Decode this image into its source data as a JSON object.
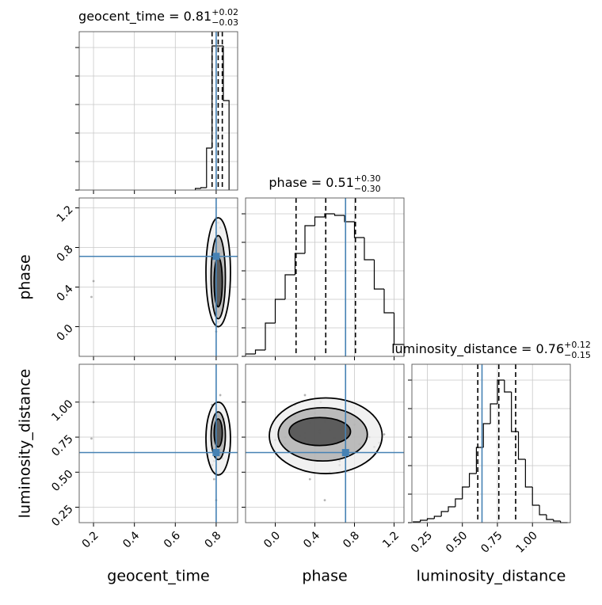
{
  "chart_data": {
    "type": "corner",
    "parameters": [
      {
        "name": "geocent_time",
        "title": "geocent_time = 0.81",
        "title_sup": "+0.02",
        "title_sub": "−0.03",
        "lim": [
          0.13,
          0.905
        ],
        "ticks": [
          0.2,
          0.4,
          0.6,
          0.8
        ],
        "truth": 0.8,
        "quantiles": [
          0.78,
          0.81,
          0.83
        ],
        "bins": [
          0.698,
          0.725,
          0.753,
          0.78,
          0.808,
          0.835,
          0.863
        ],
        "counts": [
          2,
          3,
          53,
          182,
          182,
          113
        ]
      },
      {
        "name": "phase",
        "title": "phase = 0.51",
        "title_sup": "+0.30",
        "title_sub": "−0.30",
        "lim": [
          -0.3,
          1.3
        ],
        "ticks": [
          {
            "value": 0,
            "label": "0.0"
          },
          0.4,
          0.8,
          1.2
        ],
        "truth": 0.71,
        "quantiles": [
          0.21,
          0.51,
          0.81
        ],
        "bins": [
          -0.3,
          -0.2,
          -0.1,
          0.0,
          0.1,
          0.2,
          0.3,
          0.4,
          0.5,
          0.6,
          0.7,
          0.8,
          0.9,
          1.0,
          1.1,
          1.2,
          1.3
        ],
        "counts": [
          3,
          8,
          42,
          72,
          103,
          130,
          165,
          176,
          180,
          178,
          170,
          150,
          122,
          85,
          55,
          15
        ]
      },
      {
        "name": "luminosity_distance",
        "title": "luminosity_distance = 0.76",
        "title_sup": "+0.12",
        "title_sub": "−0.15",
        "lim": [
          0.14,
          1.27
        ],
        "ticks": [
          0.25,
          {
            "value": 0.5,
            "label": "0.50"
          },
          0.75,
          {
            "value": 1,
            "label": "1.00"
          }
        ],
        "truth": 0.64,
        "quantiles": [
          0.61,
          0.76,
          0.88
        ],
        "bins": [
          0.15,
          0.2,
          0.25,
          0.3,
          0.35,
          0.4,
          0.45,
          0.5,
          0.55,
          0.6,
          0.65,
          0.7,
          0.75,
          0.8,
          0.85,
          0.9,
          0.95,
          1.0,
          1.05,
          1.1,
          1.15,
          1.2,
          1.25
        ],
        "counts": [
          1,
          3,
          5,
          8,
          14,
          20,
          30,
          45,
          62,
          95,
          125,
          150,
          180,
          165,
          115,
          80,
          45,
          22,
          10,
          4,
          2,
          0
        ]
      }
    ],
    "hist_ylim": [
      0,
      200
    ],
    "hist_yticks": [
      0,
      36,
      72,
      108,
      144,
      180
    ],
    "grid": true,
    "truth_color": "#4682b4",
    "hist_color": "#000000",
    "sample_color": "#777777",
    "density_colors": [
      "#ececec",
      "#a8a8a8",
      "#3c3c3c"
    ],
    "samples": [
      [
        0.2,
        0.19,
        0.8,
        0.81,
        0.79,
        0.82,
        0.8,
        0.81,
        0.83,
        0.8,
        0.79,
        0.81,
        0.82,
        0.8,
        0.81,
        0.78,
        0.84,
        0.8,
        0.81,
        0.82,
        0.79,
        0.8,
        0.81,
        0.83,
        0.8,
        0.82,
        0.81,
        0.79,
        0.8,
        0.81,
        0.82,
        0.8,
        0.78,
        0.81,
        0.83,
        0.8,
        0.79,
        0.81,
        0.82,
        0.8
      ],
      [
        0.46,
        0.3,
        0.1,
        0.55,
        0.8,
        0.35,
        0.95,
        0.2,
        0.6,
        0.45,
        0.7,
        0.05,
        1.0,
        0.5,
        0.25,
        0.65,
        0.4,
        -0.05,
        0.85,
        0.3,
        0.55,
        1.1,
        0.15,
        0.75,
        0.4,
        0.6,
        0.9,
        0.35,
        0.5,
        0.0,
        0.7,
        0.45,
        0.2,
        1.05,
        0.55,
        0.8,
        0.65,
        0.3,
        0.1,
        0.5
      ],
      [
        1.0,
        0.74,
        0.7,
        0.8,
        0.65,
        0.85,
        0.75,
        0.9,
        0.6,
        0.78,
        0.82,
        0.72,
        0.68,
        0.95,
        0.76,
        0.55,
        0.88,
        0.79,
        0.7,
        1.05,
        0.5,
        0.77,
        0.83,
        0.66,
        0.92,
        0.74,
        0.81,
        0.45,
        0.86,
        0.73,
        0.62,
        0.8,
        0.98,
        0.71,
        0.69,
        0.84,
        0.58,
        0.78,
        0.75,
        0.3
      ]
    ],
    "contours": [
      [
        {
          "cx": 0.81,
          "cy": 0.55,
          "rx": 0.06,
          "ry": 0.55
        },
        {
          "cx": 0.81,
          "cy": 0.5,
          "rx": 0.035,
          "ry": 0.42
        },
        {
          "cx": 0.81,
          "cy": 0.45,
          "rx": 0.02,
          "ry": 0.25
        }
      ],
      [
        {
          "cx": 0.81,
          "cy": 0.74,
          "rx": 0.06,
          "ry": 0.26
        },
        {
          "cx": 0.81,
          "cy": 0.76,
          "rx": 0.035,
          "ry": 0.17
        },
        {
          "cx": 0.81,
          "cy": 0.78,
          "rx": 0.02,
          "ry": 0.1
        }
      ],
      [
        {
          "cx": 0.51,
          "cy": 0.76,
          "rx": 0.57,
          "ry": 0.27
        },
        {
          "cx": 0.48,
          "cy": 0.77,
          "rx": 0.45,
          "ry": 0.19
        },
        {
          "cx": 0.45,
          "cy": 0.79,
          "rx": 0.31,
          "ry": 0.1
        }
      ]
    ]
  }
}
